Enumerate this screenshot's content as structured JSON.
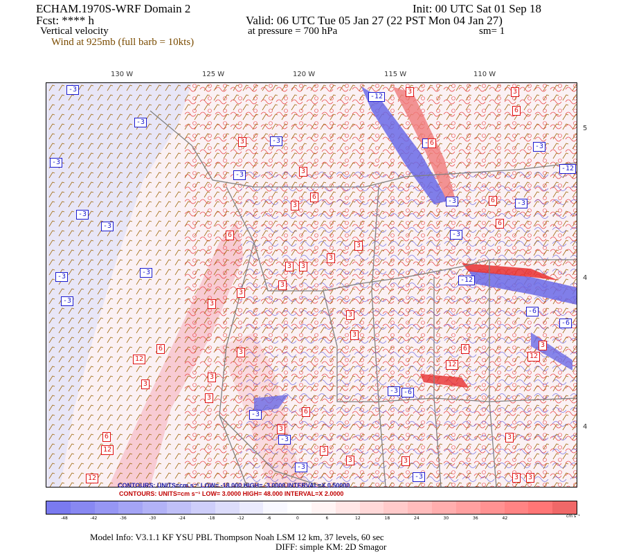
{
  "header": {
    "title": "ECHAM.1970S-WRF Domain 2",
    "fcst": "Fcst: **** h",
    "field": "Vertical velocity",
    "wind": "Wind at 925mb (full barb = 10kts)",
    "init": "Init: 00 UTC Sat 01 Sep 18",
    "valid": "Valid: 06 UTC Tue 05 Jan 27 (22 PST Mon 04 Jan 27)",
    "pressure": "at pressure =  700 hPa",
    "sm": "sm= 1"
  },
  "map": {
    "lon_labels": [
      "130 W",
      "125 W",
      "120 W",
      "115 W",
      "110 W"
    ],
    "lat_labels": [
      "5",
      "4",
      "4"
    ],
    "neg_labels": [
      "-3",
      "-3",
      "-3",
      "-3",
      "-3",
      "-3",
      "-3",
      "-3",
      "-3",
      "-3",
      "-12",
      "-6",
      "-3",
      "-3",
      "-12",
      "-6",
      "-3",
      "-3",
      "-6",
      "-3",
      "-3",
      "-12",
      "-3",
      "-3",
      "-3",
      "-6"
    ],
    "pos_labels": [
      "3",
      "3",
      "6",
      "3",
      "3",
      "3",
      "6",
      "6",
      "3",
      "3",
      "12",
      "12",
      "6",
      "6",
      "3",
      "3",
      "3",
      "3",
      "12",
      "6",
      "6",
      "3",
      "3",
      "3",
      "6",
      "3",
      "3",
      "6",
      "3",
      "3",
      "3",
      "3",
      "3",
      "3",
      "3",
      "3",
      "3",
      "12",
      "6",
      "3",
      "12"
    ],
    "colors": {
      "negative": "#1a1ad0",
      "positive": "#e01010",
      "wind": "#8a5a00",
      "border": "#808080"
    }
  },
  "contour_info": {
    "blue": "CONTOURS:  UNITS=cm s⁻¹  LOW= -18.000        HIGH= -3.0000        INTERVAL=X 0.50000",
    "red": "CONTOURS:  UNITS=cm s⁻¹  LOW=  3.0000        HIGH=  48.000        INTERVAL=X  2.0000"
  },
  "colorbar": {
    "labels": [
      "-48",
      "-42",
      "-36",
      "-30",
      "-24",
      "-18",
      "-12",
      "-6",
      "0",
      "6",
      "12",
      "18",
      "24",
      "30",
      "36",
      "42"
    ],
    "units": "cm s⁻¹",
    "colors": [
      "#7a7af0",
      "#8888f2",
      "#9696f4",
      "#a4a4f5",
      "#b2b2f7",
      "#c0c0f8",
      "#cecefa",
      "#dcdcfb",
      "#eaeafd",
      "#f8f8ff",
      "#ffffff",
      "#fff4f4",
      "#ffe6e6",
      "#ffd8d8",
      "#ffcaca",
      "#ffbcbc",
      "#ffaeae",
      "#ffa0a0",
      "#ff9292",
      "#ff8484",
      "#ff7676",
      "#f06868"
    ]
  },
  "footer": {
    "line1": "Model Info: V3.1.1     KF        YSU PBL   Thompson      Noah LSM   12 km,      37 levels,     60 sec",
    "line2": "DIFF: simple KM: 2D Smagor"
  }
}
